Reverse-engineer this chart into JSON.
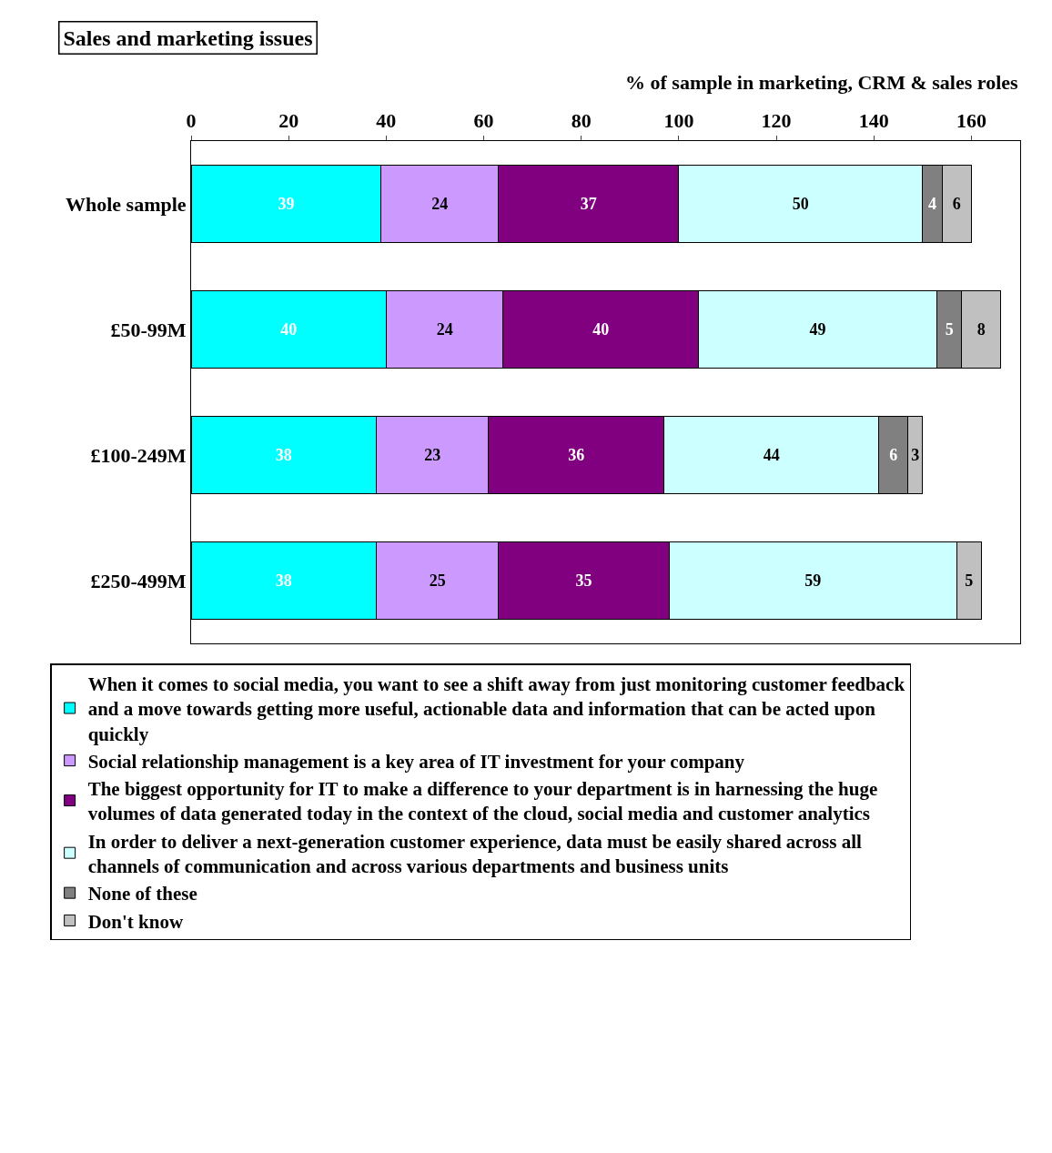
{
  "chart_data": {
    "type": "bar",
    "orientation": "horizontal",
    "stacked": true,
    "title": "Sales and marketing issues",
    "xlabel": "% of sample in marketing, CRM & sales roles",
    "categories": [
      "Whole sample",
      "£50-99M",
      "£100-249M",
      "£250-499M"
    ],
    "xlim": [
      0,
      170
    ],
    "xticks": [
      0,
      20,
      40,
      60,
      80,
      100,
      120,
      140,
      160
    ],
    "series": [
      {
        "name": "When it comes to social media, you want to see a shift away from just monitoring customer feedback and a move towards getting more useful, actionable data and information that can be acted upon quickly",
        "color": "#00ffff",
        "values": [
          39,
          40,
          38,
          38
        ]
      },
      {
        "name": "Social relationship management is a key area of IT investment for your company",
        "color": "#cc99ff",
        "values": [
          24,
          24,
          23,
          25
        ]
      },
      {
        "name": "The biggest opportunity for IT to make a difference to your department is in harnessing the huge volumes of data generated today in the context of the cloud, social media and customer analytics",
        "color": "#800080",
        "values": [
          37,
          40,
          36,
          35
        ]
      },
      {
        "name": "In order to deliver a next-generation customer experience, data must be easily shared across all channels of communication and across various departments and business units",
        "color": "#ccffff",
        "values": [
          50,
          49,
          44,
          59
        ]
      },
      {
        "name": "None of these",
        "color": "#808080",
        "values": [
          4,
          5,
          6,
          null
        ]
      },
      {
        "name": "Don't know",
        "color": "#c0c0c0",
        "values": [
          6,
          8,
          3,
          5
        ]
      }
    ],
    "data_labels": true,
    "legend": "bottom"
  }
}
